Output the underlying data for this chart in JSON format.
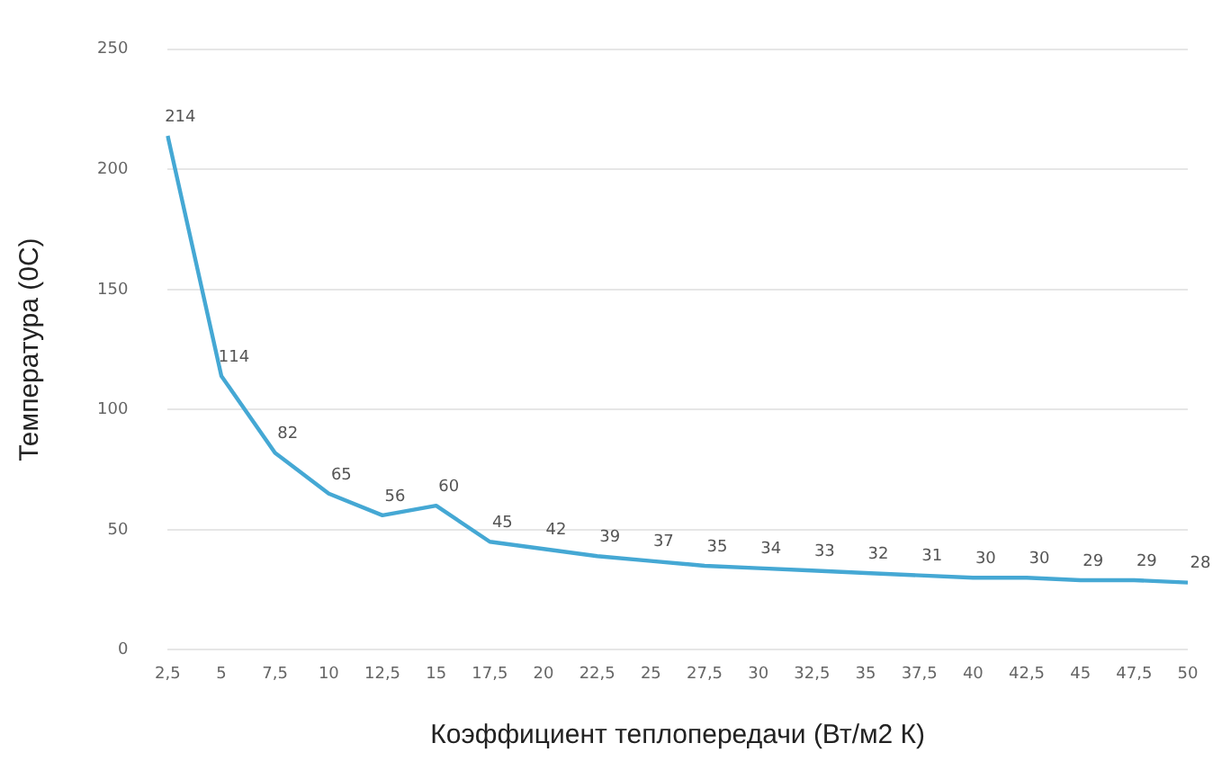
{
  "chart_data": {
    "type": "line",
    "xlabel": "Коэффициент теплопередачи (Вт/м2 К)",
    "ylabel": "Температура (0С)",
    "categories": [
      "2,5",
      "5",
      "7,5",
      "10",
      "12,5",
      "15",
      "17,5",
      "20",
      "22,5",
      "25",
      "27,5",
      "30",
      "32,5",
      "35",
      "37,5",
      "40",
      "42,5",
      "45",
      "47,5",
      "50"
    ],
    "series": [
      {
        "color": "#45a8d4",
        "values": [
          214,
          114,
          82,
          65,
          56,
          60,
          45,
          42,
          39,
          37,
          35,
          34,
          33,
          32,
          31,
          30,
          30,
          29,
          29,
          28
        ]
      }
    ],
    "ylim": [
      0,
      250
    ],
    "yticks": [
      0,
      50,
      100,
      150,
      200,
      250
    ],
    "grid": "y",
    "legend": false,
    "marker": "none",
    "line_style": "solid",
    "data_labels": true
  }
}
